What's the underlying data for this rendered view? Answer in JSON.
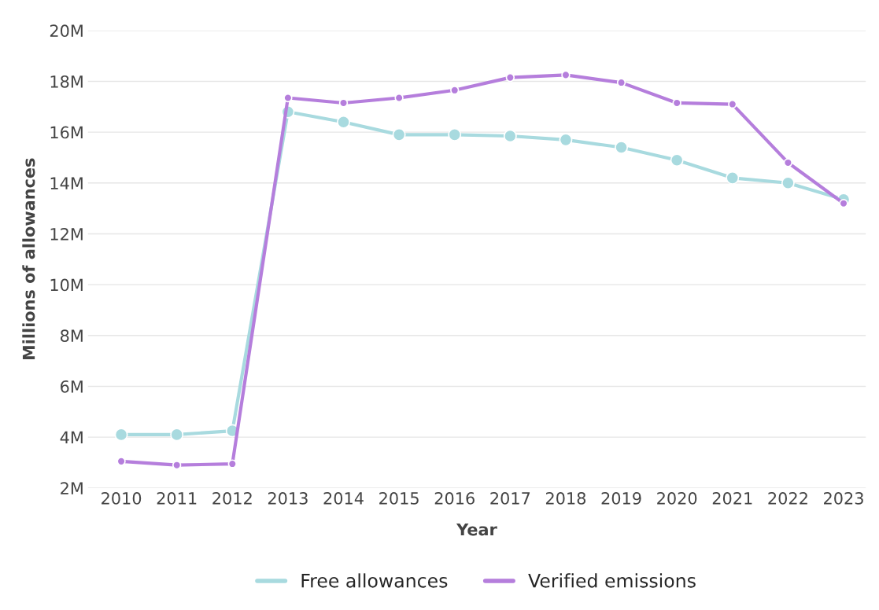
{
  "chart_data": {
    "type": "line",
    "xlabel": "Year",
    "ylabel": "Millions of allowances",
    "categories": [
      "2010",
      "2011",
      "2012",
      "2013",
      "2014",
      "2015",
      "2016",
      "2017",
      "2018",
      "2019",
      "2020",
      "2021",
      "2022",
      "2023"
    ],
    "series": [
      {
        "name": "Free allowances",
        "color": "#a8dadf",
        "values": [
          4.1,
          4.1,
          4.25,
          16.8,
          16.4,
          15.9,
          15.9,
          15.85,
          15.7,
          15.4,
          14.9,
          14.2,
          14.0,
          13.35
        ]
      },
      {
        "name": "Verified emissions",
        "color": "#b57edc",
        "values": [
          3.05,
          2.9,
          2.95,
          17.35,
          17.15,
          17.35,
          17.65,
          18.15,
          18.25,
          17.95,
          17.15,
          17.1,
          14.8,
          13.2
        ]
      }
    ],
    "ylim": [
      2,
      20
    ],
    "yticks": [
      {
        "value": 2,
        "label": "2M"
      },
      {
        "value": 4,
        "label": "4M"
      },
      {
        "value": 6,
        "label": "6M"
      },
      {
        "value": 8,
        "label": "8M"
      },
      {
        "value": 10,
        "label": "10M"
      },
      {
        "value": 12,
        "label": "12M"
      },
      {
        "value": 14,
        "label": "14M"
      },
      {
        "value": 16,
        "label": "16M"
      },
      {
        "value": 18,
        "label": "18M"
      },
      {
        "value": 20,
        "label": "20M"
      }
    ],
    "grid": "y",
    "legend": "bottom",
    "marker": "circle",
    "line_style": "solid"
  }
}
